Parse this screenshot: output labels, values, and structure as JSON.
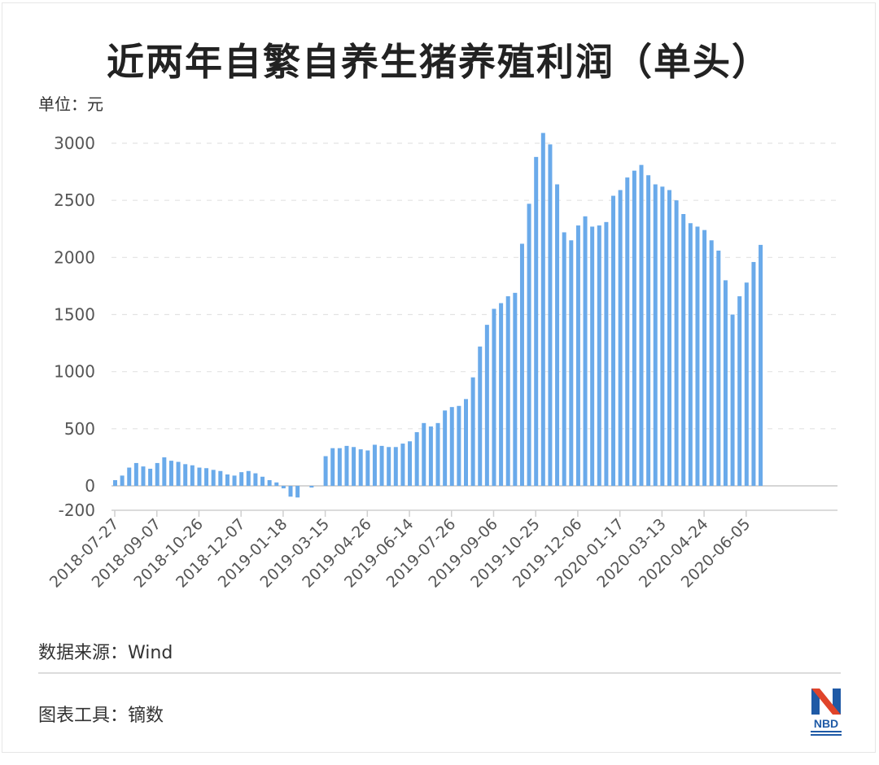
{
  "header": {
    "title": "近两年自繁自养生猪养殖利润（单头）",
    "unit_label": "单位：元"
  },
  "footer": {
    "source": "数据来源：Wind",
    "tool": "图表工具：镝数",
    "logo_text": "NBD"
  },
  "colors": {
    "bar": "#6aaaea",
    "grid": "#e3e3e3",
    "axis": "#cfcfcf",
    "logo_blue": "#1f5aa6",
    "logo_red": "#e0442a"
  },
  "chart_data": {
    "type": "bar",
    "title": "近两年自繁自养生猪养殖利润（单头）",
    "xlabel": "",
    "ylabel": "单位：元",
    "ylim": [
      -200,
      3000
    ],
    "yticks": [
      -200,
      0,
      500,
      1000,
      1500,
      2000,
      2500,
      3000
    ],
    "grid": true,
    "legend": null,
    "x_tick_labels": [
      "2018-07-27",
      "2018-09-07",
      "2018-10-26",
      "2018-12-07",
      "2019-01-18",
      "2019-03-15",
      "2019-04-26",
      "2019-06-14",
      "2019-07-26",
      "2019-09-06",
      "2019-10-25",
      "2019-12-06",
      "2020-01-17",
      "2020-03-13",
      "2020-04-24",
      "2020-06-05"
    ],
    "x_tick_every": 6,
    "values": [
      50,
      90,
      160,
      200,
      170,
      150,
      200,
      250,
      220,
      210,
      190,
      180,
      160,
      155,
      140,
      130,
      100,
      90,
      120,
      130,
      110,
      80,
      50,
      30,
      -30,
      -130,
      -140,
      0,
      -20,
      0,
      260,
      330,
      330,
      350,
      340,
      320,
      310,
      360,
      350,
      340,
      340,
      370,
      390,
      470,
      550,
      520,
      550,
      660,
      690,
      700,
      760,
      950,
      1220,
      1410,
      1550,
      1600,
      1660,
      1690,
      2120,
      2470,
      2880,
      3090,
      2990,
      2640,
      2220,
      2150,
      2280,
      2360,
      2270,
      2280,
      2310,
      2540,
      2590,
      2700,
      2760,
      2810,
      2720,
      2640,
      2620,
      2590,
      2500,
      2380,
      2300,
      2270,
      2240,
      2150,
      2060,
      1800,
      1500,
      1660,
      1780,
      1960,
      2110
    ]
  }
}
